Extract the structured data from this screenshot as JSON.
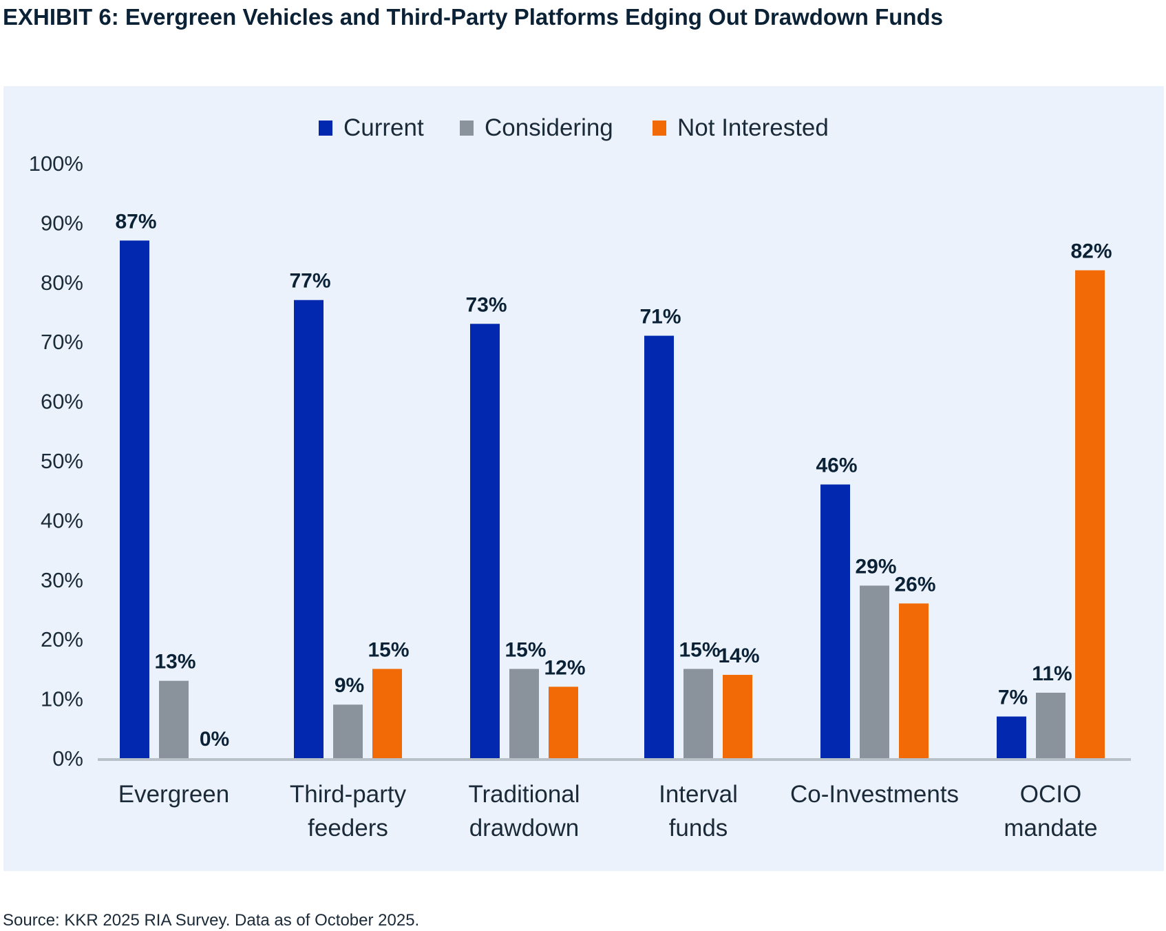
{
  "chart_data": {
    "type": "bar",
    "title": "EXHIBIT 6: Evergreen Vehicles and Third-Party Platforms Edging Out Drawdown Funds",
    "categories": [
      [
        "Evergreen"
      ],
      [
        "Third-party",
        "feeders"
      ],
      [
        "Traditional",
        "drawdown"
      ],
      [
        "Interval",
        "funds"
      ],
      [
        "Co-Investments"
      ],
      [
        "OCIO",
        "mandate"
      ]
    ],
    "series": [
      {
        "name": "Current",
        "color": "#0328b0",
        "values": [
          87,
          77,
          73,
          71,
          46,
          7
        ]
      },
      {
        "name": "Considering",
        "color": "#8a939c",
        "values": [
          13,
          9,
          15,
          15,
          29,
          11
        ]
      },
      {
        "name": "Not Interested",
        "color": "#f26a05",
        "values": [
          0,
          15,
          12,
          14,
          26,
          82
        ]
      }
    ],
    "ylim": [
      0,
      100
    ],
    "yticks": [
      "0%",
      "10%",
      "20%",
      "30%",
      "40%",
      "50%",
      "60%",
      "70%",
      "80%",
      "90%",
      "100%"
    ],
    "legend_position": "top-center",
    "grid": false,
    "value_suffix": "%",
    "source": "Source: KKR 2025 RIA Survey. Data as of October 2025."
  }
}
